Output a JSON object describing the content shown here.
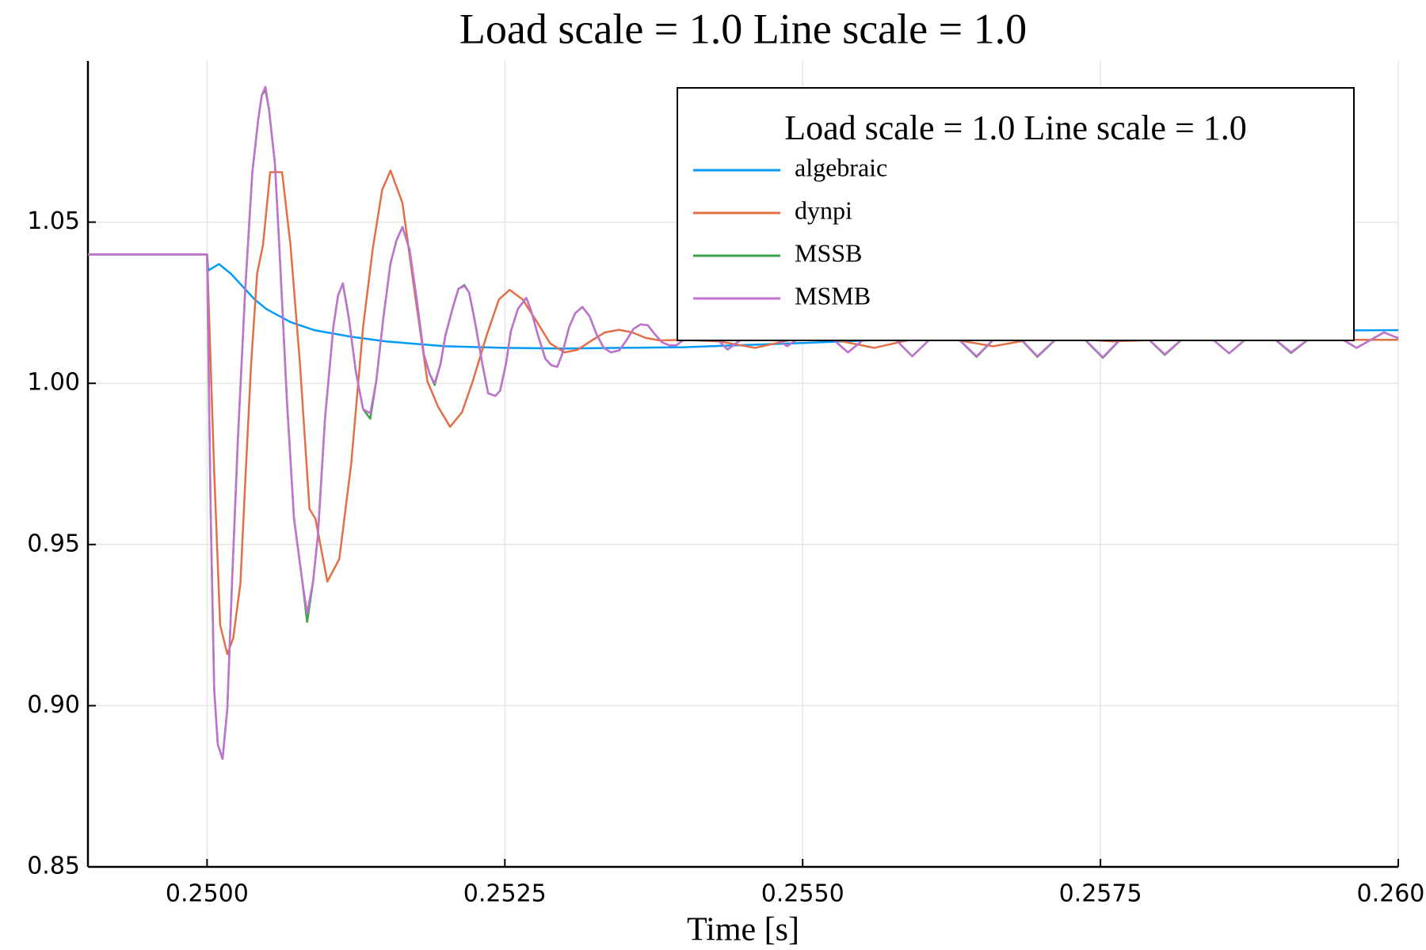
{
  "chart_data": {
    "type": "line",
    "title": "Load scale = 1.0 Line scale = 1.0",
    "x_label": "Time [s]",
    "legend_title": "Load scale = 1.0 Line scale = 1.0",
    "legend": "top-right",
    "grid": true,
    "xlim": [
      0.249,
      0.26
    ],
    "ylim": [
      0.85,
      1.1
    ],
    "xticks": [
      {
        "value": 0.25,
        "label": "0.2500"
      },
      {
        "value": 0.2525,
        "label": "0.2525"
      },
      {
        "value": 0.255,
        "label": "0.2550"
      },
      {
        "value": 0.2575,
        "label": "0.2575"
      },
      {
        "value": 0.26,
        "label": "0.2600"
      }
    ],
    "yticks": [
      0.85,
      {
        "value": 0.9,
        "label": "0.90"
      },
      0.95,
      {
        "value": 1,
        "label": "1.00"
      },
      1.05
    ],
    "series": [
      {
        "name": "algebraic",
        "color": "#009af9",
        "x": [
          0.249,
          0.25,
          0.25001,
          0.2501,
          0.2502,
          0.2503,
          0.2504,
          0.2505,
          0.2507,
          0.2509,
          0.2512,
          0.2515,
          0.252,
          0.2525,
          0.253,
          0.254,
          0.255,
          0.256,
          0.257,
          0.258,
          0.259,
          0.26
        ],
        "values": [
          1.04,
          1.04,
          1.035,
          1.037,
          1.034,
          1.03,
          1.026,
          1.023,
          1.019,
          1.0165,
          1.0145,
          1.013,
          1.0115,
          1.011,
          1.0108,
          1.0112,
          1.0125,
          1.014,
          1.015,
          1.0158,
          1.0163,
          1.0165
        ]
      },
      {
        "name": "dynpi",
        "color": "#e26f46",
        "x": [
          0.249,
          0.25,
          0.25006,
          0.25011,
          0.25017,
          0.25022,
          0.25028,
          0.25032,
          0.25037,
          0.25042,
          0.25047,
          0.25053,
          0.25063,
          0.2507,
          0.25078,
          0.25086,
          0.25091,
          0.25101,
          0.25111,
          0.25121,
          0.25131,
          0.25139,
          0.25147,
          0.25154,
          0.25164,
          0.25174,
          0.25185,
          0.25194,
          0.25204,
          0.25214,
          0.25223,
          0.25235,
          0.25245,
          0.25254,
          0.25265,
          0.25277,
          0.25288,
          0.253,
          0.25311,
          0.25323,
          0.25334,
          0.25346,
          0.25357,
          0.25368,
          0.2538,
          0.254,
          0.2543,
          0.2546,
          0.2549,
          0.2552,
          0.2556,
          0.2559,
          0.2562,
          0.2566,
          0.2569,
          0.2572,
          0.2576,
          0.258,
          0.259,
          0.26
        ],
        "values": [
          1.04,
          1.04,
          0.9725,
          0.925,
          0.916,
          0.921,
          0.938,
          0.969,
          1.006,
          1.034,
          1.043,
          1.0655,
          1.0655,
          1.043,
          1.006,
          0.961,
          0.958,
          0.9385,
          0.9455,
          0.975,
          1.0175,
          1.0415,
          1.06,
          1.066,
          1.056,
          1.029,
          1.0006,
          0.9927,
          0.9865,
          0.991,
          1.0006,
          1.0152,
          1.026,
          1.029,
          1.026,
          1.019,
          1.0124,
          1.0096,
          1.0104,
          1.0133,
          1.0158,
          1.0166,
          1.0158,
          1.0141,
          1.0133,
          1.0135,
          1.013,
          1.011,
          1.0135,
          1.014,
          1.011,
          1.0135,
          1.014,
          1.0115,
          1.0135,
          1.014,
          1.013,
          1.0135,
          1.0135,
          1.0135
        ]
      },
      {
        "name": "MSSB",
        "color": "#3da44d",
        "x": [
          0.249,
          0.25,
          0.25003,
          0.25006,
          0.25009,
          0.25013,
          0.25017,
          0.25021,
          0.25026,
          0.25032,
          0.25038,
          0.25043,
          0.25046,
          0.25049,
          0.25052,
          0.25057,
          0.25061,
          0.25067,
          0.25073,
          0.2508,
          0.25084,
          0.25089,
          0.25093,
          0.25099,
          0.25106,
          0.2511,
          0.25114,
          0.25119,
          0.25125,
          0.25131,
          0.25137,
          0.25142,
          0.25148,
          0.25154,
          0.25159,
          0.25164,
          0.2517,
          0.25176,
          0.25182,
          0.25187,
          0.25191,
          0.25196,
          0.252,
          0.25206,
          0.25211,
          0.25216,
          0.2522,
          0.25225,
          0.25231,
          0.25236,
          0.25242,
          0.25246,
          0.25251,
          0.25255,
          0.25261,
          0.25268,
          0.25272,
          0.25278,
          0.25284,
          0.25289,
          0.25294,
          0.25298,
          0.25304,
          0.25309,
          0.25315,
          0.25321,
          0.25327,
          0.25333,
          0.25339,
          0.25346,
          0.25352,
          0.25358,
          0.25364,
          0.2537,
          0.25376,
          0.25382,
          0.25388,
          0.25394,
          0.25416,
          0.25437,
          0.25463,
          0.25487,
          0.25512,
          0.25538,
          0.25566,
          0.25592,
          0.25619,
          0.25646,
          0.25672,
          0.25697,
          0.25725,
          0.25752,
          0.25778,
          0.25804,
          0.25831,
          0.25858,
          0.25884,
          0.2591,
          0.25937,
          0.25965,
          0.25988,
          0.26
        ],
        "values": [
          1.04,
          1.04,
          0.961,
          0.905,
          0.888,
          0.8835,
          0.899,
          0.9385,
          0.9836,
          1.0288,
          1.0654,
          1.082,
          1.0894,
          1.091,
          1.085,
          1.068,
          1.04,
          0.995,
          0.958,
          0.9385,
          0.926,
          0.9385,
          0.9526,
          0.989,
          1.0175,
          1.0273,
          1.031,
          1.0203,
          1.0034,
          0.992,
          0.989,
          1.0006,
          1.0203,
          1.0372,
          1.0443,
          1.0485,
          1.0415,
          1.026,
          1.009,
          1.0028,
          0.9995,
          1.006,
          1.0147,
          1.0231,
          1.0293,
          1.0305,
          1.0282,
          1.0189,
          1.0062,
          0.9969,
          0.9961,
          0.9977,
          1.0062,
          1.0161,
          1.0231,
          1.0265,
          1.0226,
          1.0147,
          1.0076,
          1.0056,
          1.0051,
          1.009,
          1.0175,
          1.0217,
          1.0237,
          1.0209,
          1.0152,
          1.011,
          1.0096,
          1.0102,
          1.0133,
          1.0169,
          1.0183,
          1.018,
          1.0152,
          1.0127,
          1.0118,
          1.0118,
          1.018,
          1.0105,
          1.0175,
          1.0115,
          1.018,
          1.0096,
          1.018,
          1.0084,
          1.018,
          1.0082,
          1.018,
          1.0082,
          1.018,
          1.0079,
          1.018,
          1.0088,
          1.0178,
          1.0093,
          1.0175,
          1.0094,
          1.0172,
          1.011,
          1.0158,
          1.014
        ]
      },
      {
        "name": "MSMB",
        "color": "#c271d2",
        "x": [
          0.249,
          0.25,
          0.25003,
          0.25006,
          0.25009,
          0.25013,
          0.25017,
          0.25021,
          0.25026,
          0.25032,
          0.25038,
          0.25043,
          0.25046,
          0.25049,
          0.25052,
          0.25057,
          0.25061,
          0.25067,
          0.25073,
          0.2508,
          0.25084,
          0.25089,
          0.25093,
          0.25099,
          0.25106,
          0.2511,
          0.25114,
          0.25119,
          0.25125,
          0.25131,
          0.25137,
          0.25142,
          0.25148,
          0.25154,
          0.25159,
          0.25164,
          0.2517,
          0.25176,
          0.25182,
          0.25187,
          0.25191,
          0.25196,
          0.252,
          0.25206,
          0.25211,
          0.25216,
          0.2522,
          0.25225,
          0.25231,
          0.25236,
          0.25242,
          0.25246,
          0.25251,
          0.25255,
          0.25261,
          0.25268,
          0.25272,
          0.25278,
          0.25284,
          0.25289,
          0.25294,
          0.25298,
          0.25304,
          0.25309,
          0.25315,
          0.25321,
          0.25327,
          0.25333,
          0.25339,
          0.25346,
          0.25352,
          0.25358,
          0.25364,
          0.2537,
          0.25376,
          0.25382,
          0.25388,
          0.25394,
          0.25416,
          0.25437,
          0.25463,
          0.25487,
          0.25512,
          0.25538,
          0.25566,
          0.25592,
          0.25619,
          0.25646,
          0.25672,
          0.25697,
          0.25725,
          0.25752,
          0.25778,
          0.25804,
          0.25831,
          0.25858,
          0.25884,
          0.2591,
          0.25937,
          0.25965,
          0.25988,
          0.26
        ],
        "values": [
          1.04,
          1.04,
          0.961,
          0.905,
          0.888,
          0.8835,
          0.899,
          0.9385,
          0.9836,
          1.0288,
          1.0654,
          1.082,
          1.0894,
          1.092,
          1.085,
          1.068,
          1.04,
          0.995,
          0.958,
          0.9385,
          0.9287,
          0.9385,
          0.9526,
          0.989,
          1.0175,
          1.0273,
          1.031,
          1.0203,
          1.0034,
          0.992,
          0.9907,
          1.0006,
          1.0203,
          1.0372,
          1.0443,
          1.0485,
          1.0415,
          1.026,
          1.009,
          1.0028,
          1.0,
          1.006,
          1.0147,
          1.0231,
          1.0293,
          1.0302,
          1.0282,
          1.0189,
          1.0062,
          0.9969,
          0.9961,
          0.9977,
          1.0062,
          1.0161,
          1.0231,
          1.0265,
          1.0226,
          1.0147,
          1.0076,
          1.0056,
          1.0051,
          1.009,
          1.0175,
          1.0217,
          1.0237,
          1.0209,
          1.0152,
          1.011,
          1.0096,
          1.0102,
          1.0133,
          1.0169,
          1.0183,
          1.018,
          1.0152,
          1.0127,
          1.0118,
          1.0118,
          1.018,
          1.0105,
          1.0175,
          1.0115,
          1.018,
          1.0096,
          1.018,
          1.0084,
          1.018,
          1.0084,
          1.018,
          1.0084,
          1.018,
          1.0081,
          1.018,
          1.009,
          1.0178,
          1.0093,
          1.0175,
          1.0096,
          1.0172,
          1.011,
          1.0158,
          1.014
        ]
      }
    ]
  }
}
